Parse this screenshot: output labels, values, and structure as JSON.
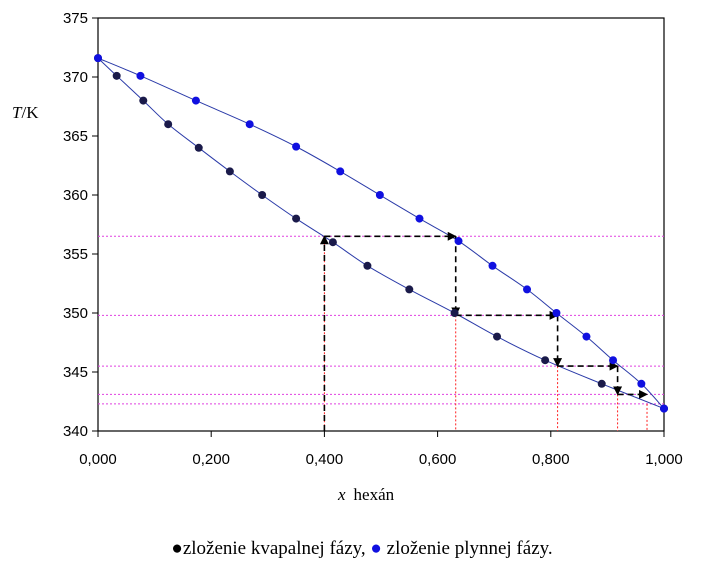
{
  "chart_data": {
    "type": "scatter",
    "xlabel_italic": "x",
    "xlabel_rest": "hexán",
    "ylabel_italic": "T",
    "ylabel_rest": "/K",
    "xlim": [
      0,
      1
    ],
    "ylim": [
      340,
      375
    ],
    "x_ticks": [
      0,
      0.2,
      0.4,
      0.6,
      0.8,
      1.0
    ],
    "x_tick_labels": [
      "0,000",
      "0,200",
      "0,400",
      "0,600",
      "0,800",
      "1,000"
    ],
    "y_ticks": [
      340,
      345,
      350,
      355,
      360,
      365,
      370,
      375
    ],
    "y_tick_labels": [
      "340",
      "345",
      "350",
      "355",
      "360",
      "365",
      "370",
      "375"
    ],
    "grid": false,
    "legend_position": "bottom",
    "series": [
      {
        "name": "zloženie kvapalnej fázy",
        "color": "#1a1a4a",
        "points": [
          [
            0.0,
            371.6
          ],
          [
            0.033,
            370.1
          ],
          [
            0.08,
            368.0
          ],
          [
            0.124,
            366.0
          ],
          [
            0.178,
            364.0
          ],
          [
            0.233,
            362.0
          ],
          [
            0.29,
            360.0
          ],
          [
            0.35,
            358.0
          ],
          [
            0.415,
            356.0
          ],
          [
            0.476,
            354.0
          ],
          [
            0.55,
            352.0
          ],
          [
            0.63,
            350.0
          ],
          [
            0.705,
            348.0
          ],
          [
            0.79,
            346.0
          ],
          [
            0.89,
            344.0
          ],
          [
            1.0,
            341.9
          ]
        ]
      },
      {
        "name": "zloženie plynnej fázy",
        "color": "#1010e0",
        "points": [
          [
            0.0,
            371.6
          ],
          [
            0.075,
            370.1
          ],
          [
            0.173,
            368.0
          ],
          [
            0.268,
            366.0
          ],
          [
            0.35,
            364.1
          ],
          [
            0.428,
            362.0
          ],
          [
            0.498,
            360.0
          ],
          [
            0.568,
            358.0
          ],
          [
            0.637,
            356.1
          ],
          [
            0.697,
            354.0
          ],
          [
            0.758,
            352.0
          ],
          [
            0.81,
            350.0
          ],
          [
            0.863,
            348.0
          ],
          [
            0.91,
            346.0
          ],
          [
            0.96,
            344.0
          ],
          [
            1.0,
            341.9
          ]
        ]
      }
    ],
    "guide_lines": {
      "horizontal_y": [
        356.5,
        349.8,
        345.5,
        343.1,
        342.3
      ],
      "vertical_x": [
        0.4,
        0.632,
        0.812,
        0.918,
        0.97
      ]
    },
    "staircase": [
      [
        0.4,
        340
      ],
      [
        0.4,
        356.5
      ],
      [
        0.632,
        356.5
      ],
      [
        0.632,
        349.8
      ],
      [
        0.812,
        349.8
      ],
      [
        0.812,
        345.5
      ],
      [
        0.918,
        345.5
      ],
      [
        0.918,
        343.1
      ],
      [
        0.97,
        343.1
      ]
    ]
  },
  "legend": {
    "bullet": "●",
    "liquid_label": "zloženie kvapalnej fázy,",
    "vapour_label": "zloženie plynnej fázy."
  }
}
